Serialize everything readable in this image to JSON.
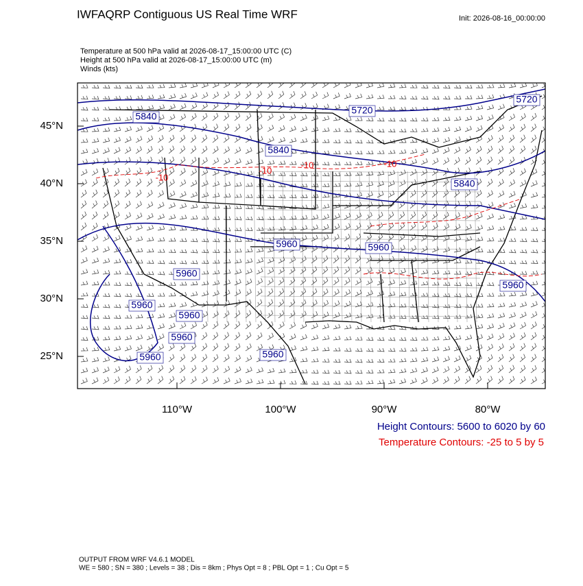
{
  "header": {
    "title": "IWFAQRP Contiguous US Real Time WRF",
    "init": "Init: 2026-08-16_00:00:00",
    "fields": [
      "Temperature at 500 hPa valid at 2026-08-17_15:00:00 UTC   (C)",
      "Height at 500 hPa valid at 2026-08-17_15:00:00 UTC   (m)",
      "Winds   (kts)"
    ]
  },
  "map": {
    "lat_ticks": [
      {
        "value": 45,
        "label": "45°N"
      },
      {
        "value": 40,
        "label": "40°N"
      },
      {
        "value": 35,
        "label": "35°N"
      },
      {
        "value": 30,
        "label": "30°N"
      },
      {
        "value": 25,
        "label": "25°N"
      }
    ],
    "lon_ticks": [
      {
        "value": -110,
        "label": "110°W"
      },
      {
        "value": -100,
        "label": "100°W"
      },
      {
        "value": -90,
        "label": "90°W"
      },
      {
        "value": -80,
        "label": "80°W"
      }
    ],
    "height_labels": [
      "5840",
      "5720",
      "5720",
      "5840",
      "5840",
      "5960",
      "5960",
      "5960",
      "5960",
      "5960",
      "5960",
      "5960",
      "5960",
      "5960"
    ],
    "temperature_labels": [
      "-10",
      "-10",
      "-10",
      "-10"
    ]
  },
  "legend": [
    "Height Contours: 5600 to 6020 by 60",
    "Temperature Contours: -25 to 5 by 5"
  ],
  "footer": [
    "OUTPUT FROM WRF V4.6.1 MODEL",
    "WE = 580 ; SN = 380 ; Levels = 38 ; Dis = 8km ; Phys Opt = 8 ; PBL Opt = 1 ; Cu Opt = 5"
  ]
}
